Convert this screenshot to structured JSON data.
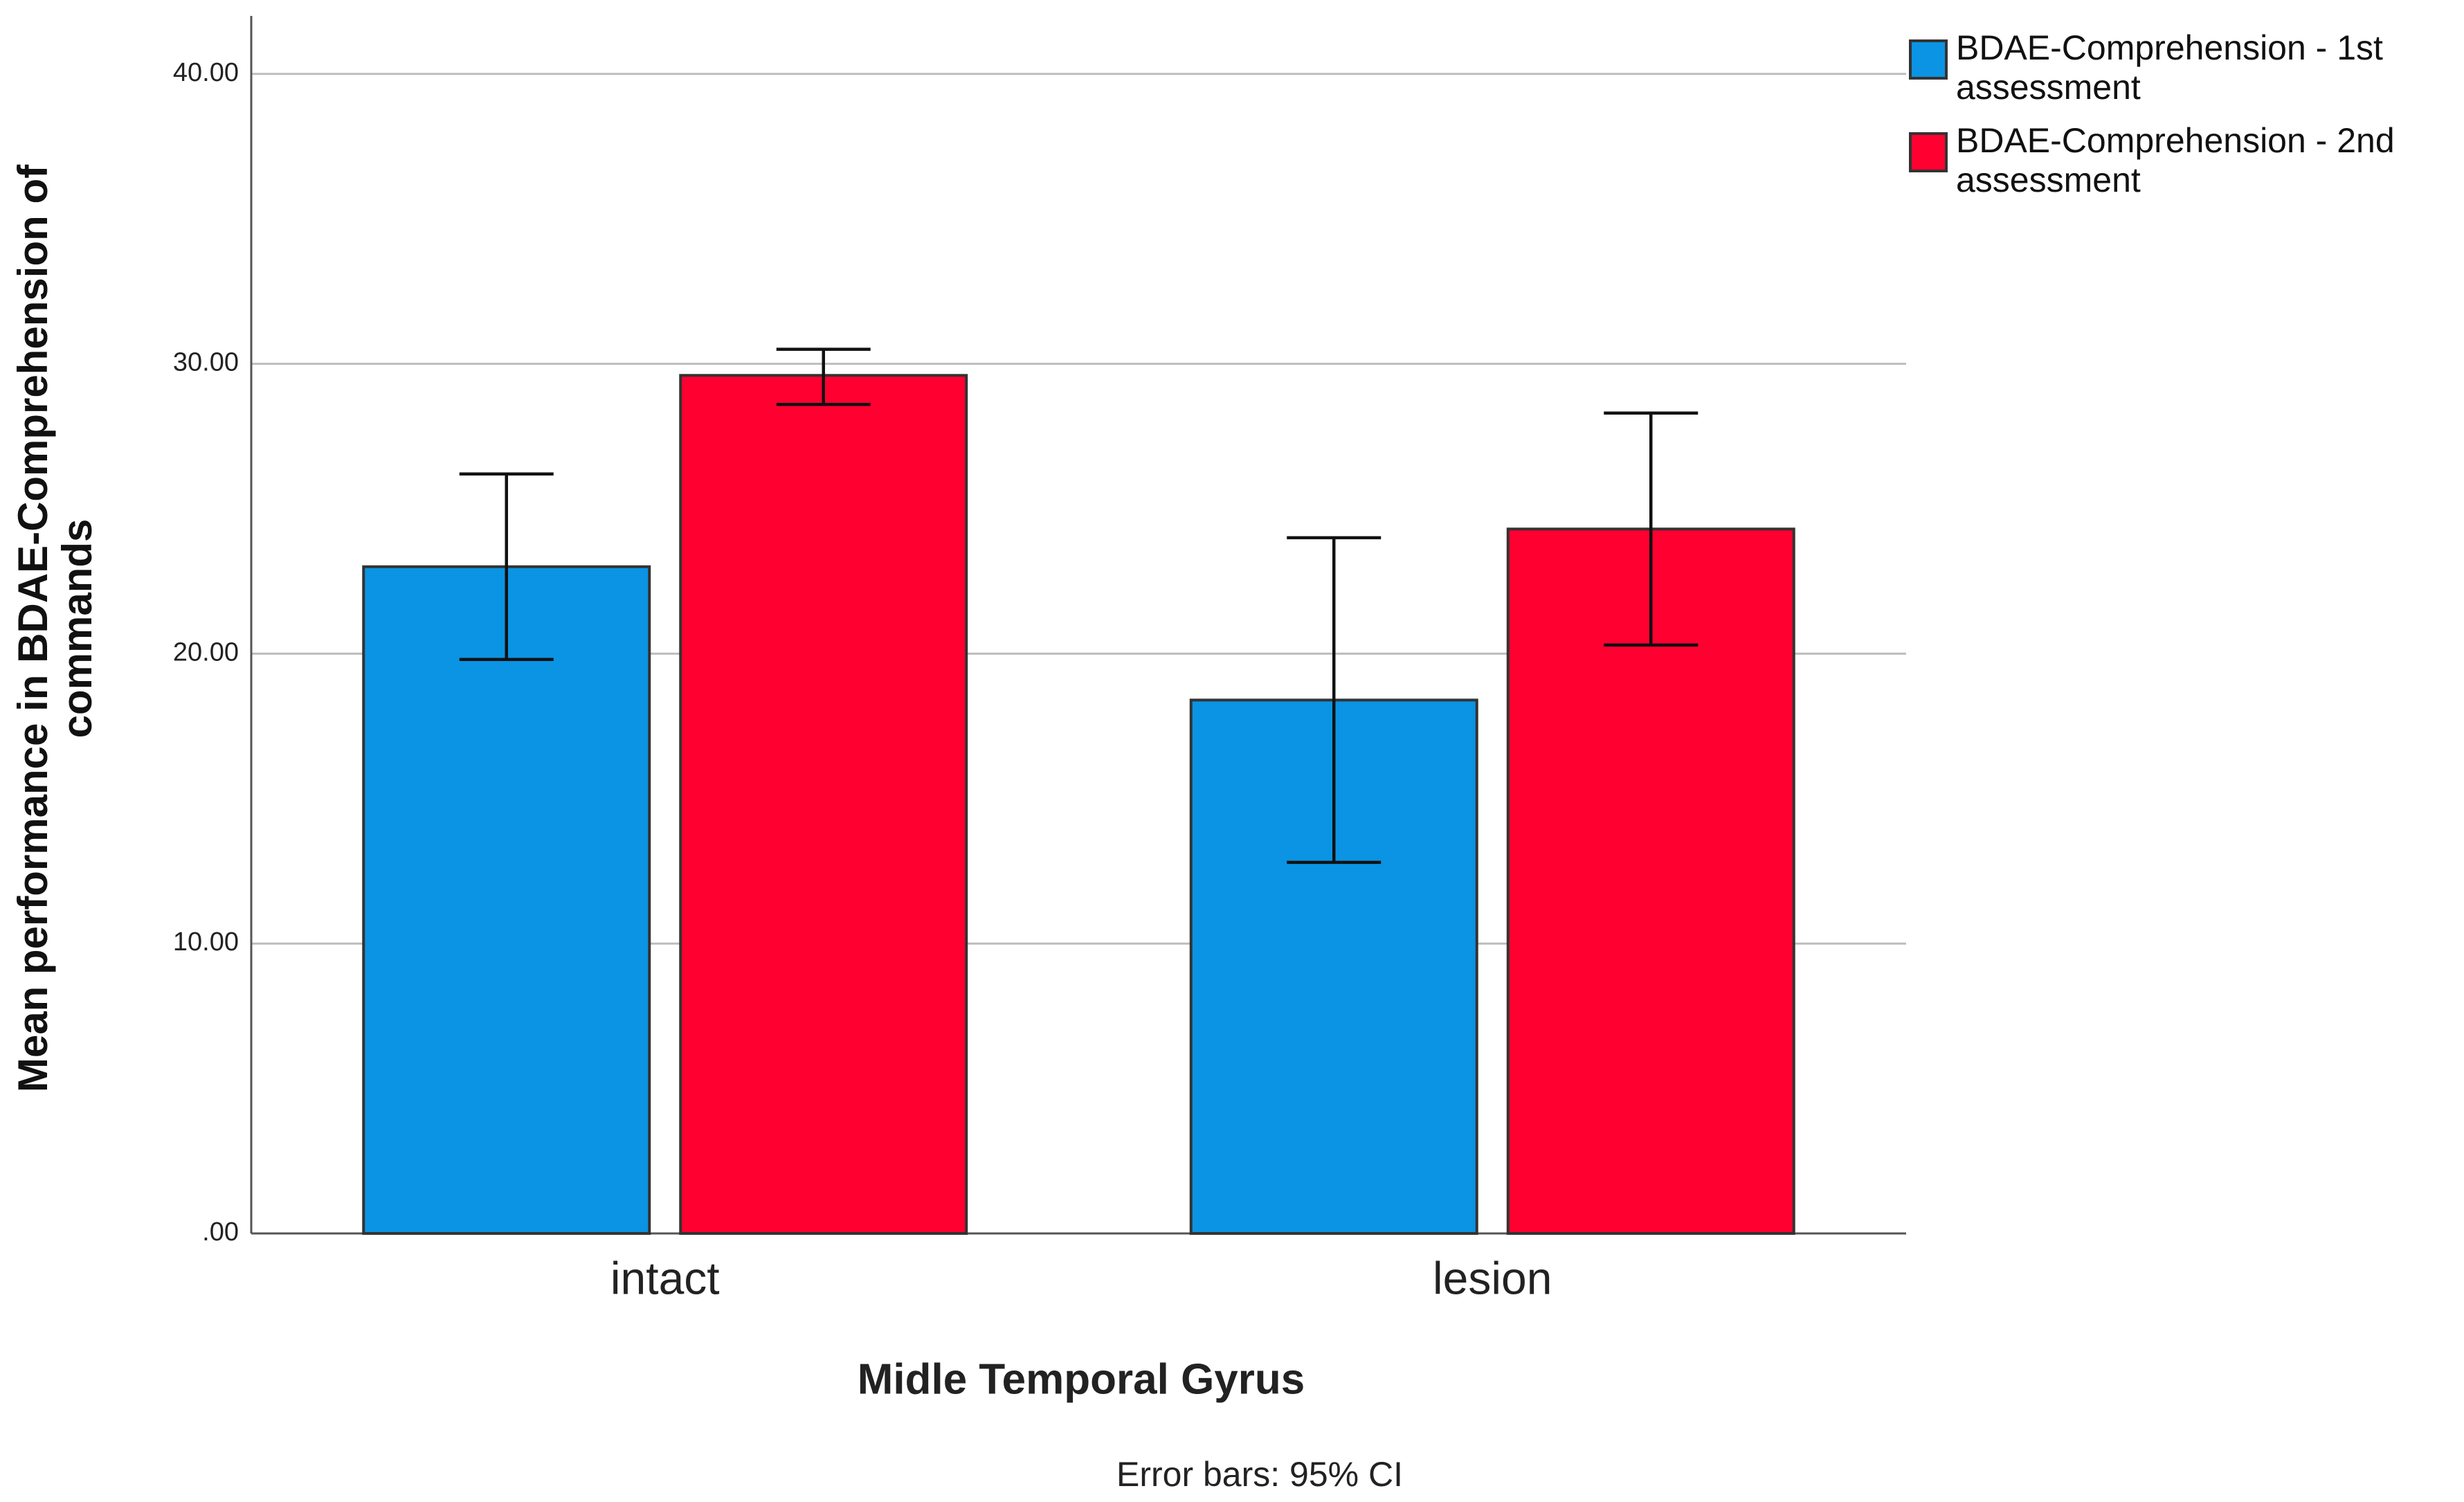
{
  "chart_data": {
    "type": "bar",
    "y_label": "Mean performance in BDAE-Comprehension of commands",
    "x_label": "Midle Temporal Gyrus",
    "note": "Error bars: 95% CI",
    "categories": [
      "intact",
      "lesion"
    ],
    "series": [
      {
        "name": "BDAE-Comprehension - 1st assessment",
        "color": "#0a94e3",
        "values": [
          23.0,
          18.4
        ],
        "ci_low": [
          19.8,
          12.8
        ],
        "ci_high": [
          26.2,
          24.0
        ]
      },
      {
        "name": "BDAE-Comprehension - 2nd assessment",
        "color": "#ff0030",
        "values": [
          29.6,
          24.3
        ],
        "ci_low": [
          28.6,
          20.3
        ],
        "ci_high": [
          30.5,
          28.3
        ]
      }
    ],
    "ylim": [
      0,
      42
    ],
    "yticks": [
      {
        "value": 0,
        "label": ".00"
      },
      {
        "value": 10,
        "label": "10.00"
      },
      {
        "value": 20,
        "label": "20.00"
      },
      {
        "value": 30,
        "label": "30.00"
      },
      {
        "value": 40,
        "label": "40.00"
      }
    ],
    "grid": true
  }
}
